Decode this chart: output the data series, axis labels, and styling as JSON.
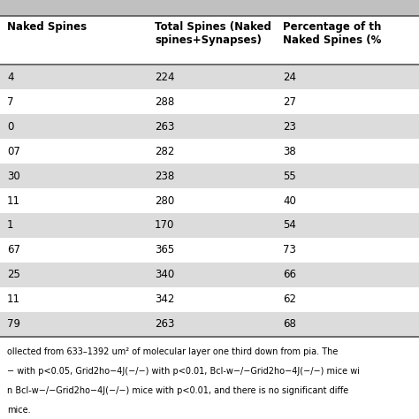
{
  "col1_header": "Naked Spines",
  "col2_header": "Total Spines (Naked\nspines+Synapses)",
  "col3_header": "Percentage of th\nNaked Spines (%",
  "col1_values": [
    "4",
    "7",
    "0",
    "07",
    "30",
    "11",
    "1",
    "67",
    "25",
    "11",
    "79"
  ],
  "col2_values": [
    "224",
    "288",
    "263",
    "282",
    "238",
    "280",
    "170",
    "365",
    "340",
    "342",
    "263"
  ],
  "col3_values": [
    "24",
    "27",
    "23",
    "38",
    "55",
    "40",
    "54",
    "73",
    "66",
    "62",
    "68"
  ],
  "footer_lines": [
    "ollected from 633–1392 um² of molecular layer one third down from pia. The",
    "− with p<0.05, Grid2ho−4J(−/−) with p<0.01, Bcl-w−/−Grid2ho−4J(−/−) mice wi",
    "n Bcl-w−/−Grid2ho−4J(−/−) mice with p<0.01, and there is no significant diffe",
    "mice."
  ],
  "row_colors": [
    "#dcdcdc",
    "#ffffff",
    "#dcdcdc",
    "#ffffff",
    "#dcdcdc",
    "#ffffff",
    "#dcdcdc",
    "#ffffff",
    "#dcdcdc",
    "#ffffff",
    "#dcdcdc"
  ],
  "header_color": "#ffffff",
  "top_bar_color": "#c0c0c0",
  "bg_color": "#ffffff",
  "fig_width": 4.74,
  "fig_height": 4.74,
  "dpi": 100
}
